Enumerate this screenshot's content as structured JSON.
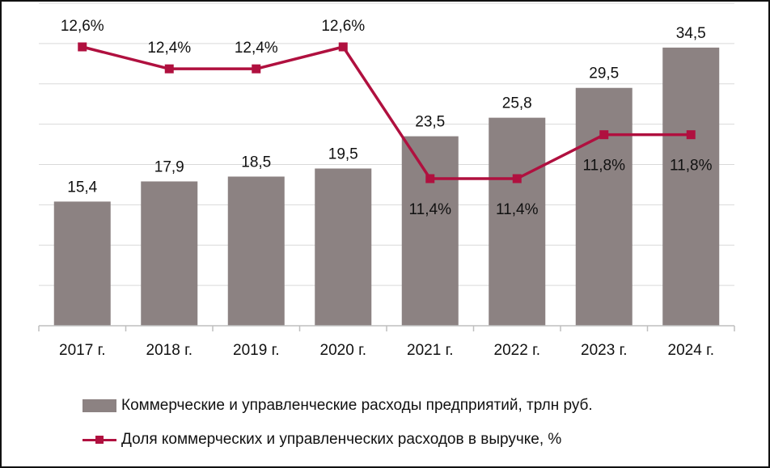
{
  "chart_data": {
    "type": "bar",
    "categories": [
      "2017 г.",
      "2018 г.",
      "2019 г.",
      "2020 г.",
      "2021 г.",
      "2022 г.",
      "2023 г.",
      "2024 г."
    ],
    "series": [
      {
        "name": "Коммерческие и управленческие расходы предприятий, трлн руб.",
        "type": "bar",
        "values": [
          15.4,
          17.9,
          18.5,
          19.5,
          23.5,
          25.8,
          29.5,
          34.5
        ],
        "labels": [
          "15,4",
          "17,9",
          "18,5",
          "19,5",
          "23,5",
          "25,8",
          "29,5",
          "34,5"
        ],
        "color": "#8c8282"
      },
      {
        "name": "Доля коммерческих и управленческих расходов в выручке, %",
        "type": "line",
        "values": [
          12.6,
          12.4,
          12.4,
          12.6,
          11.4,
          11.4,
          11.8,
          11.8
        ],
        "labels": [
          "12,6%",
          "12,4%",
          "12,4%",
          "12,6%",
          "11,4%",
          "11,4%",
          "11,8%",
          "11,8%"
        ],
        "color": "#b0103f"
      }
    ],
    "ylim": [
      0,
      40
    ],
    "y2lim": [
      10.8,
      12.7
    ],
    "grid": true,
    "legend": "bottom"
  }
}
